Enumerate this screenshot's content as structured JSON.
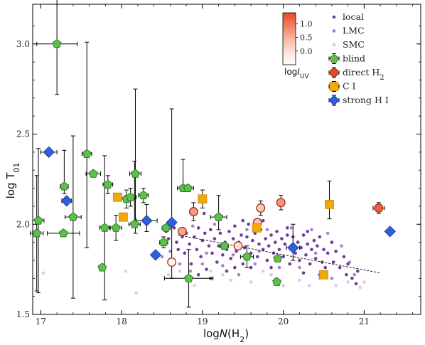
{
  "chart_data": {
    "type": "scatter",
    "xlabel_main": "logN",
    "xlabel_sub": "(H",
    "xlabel_subscript": "2",
    "xlabel_close": ")",
    "ylabel_main": "log T",
    "ylabel_subscript": "01",
    "xlim": [
      16.9,
      21.7
    ],
    "ylim": [
      1.5,
      3.22
    ],
    "xticks": [
      17,
      18,
      19,
      20,
      21
    ],
    "xtick_labels": [
      "17",
      "18",
      "19",
      "20",
      "21"
    ],
    "yticks": [
      1.5,
      2.0,
      2.5,
      3.0
    ],
    "ytick_labels": [
      "1.5",
      "2.0",
      "2.5",
      "3.0"
    ],
    "fit_line": {
      "x": [
        18.7,
        21.2
      ],
      "y": [
        1.94,
        1.73
      ]
    },
    "colorbar": {
      "label_main": "log",
      "label_italic": "I",
      "label_subscript": "UV",
      "ticks": [
        0.0,
        0.5,
        1.0
      ],
      "tick_labels": [
        "0.0",
        "0.5",
        "1.0"
      ],
      "range": [
        -0.5,
        1.4
      ],
      "colors": [
        "#ffffff",
        "#fbe3da",
        "#f7c1ab",
        "#f4a07f",
        "#ef6f45",
        "#e8491e"
      ]
    },
    "legend": [
      {
        "label": "local",
        "marker": "dot",
        "color": "#6e3d9a"
      },
      {
        "label": "LMC",
        "marker": "dot",
        "color": "#9f7fbe"
      },
      {
        "label": "SMC",
        "marker": "dot",
        "color": "#d9c6e0"
      },
      {
        "label": "blind",
        "marker": "pentagon",
        "color": "#5cc04a"
      },
      {
        "label": "direct H",
        "label_subscript": "2",
        "marker": "circle",
        "color": "#e8491e"
      },
      {
        "label": "C I",
        "marker": "square",
        "color": "#f1a90a"
      },
      {
        "label": "strong H I",
        "marker": "diamond",
        "color": "#2f5fe0"
      }
    ],
    "series": [
      {
        "name": "blind",
        "color": "#5cc04a",
        "points": [
          {
            "x": 17.2,
            "y": 3.0,
            "xerr": 0.25,
            "yerr": [
              0.28,
              1.3
            ]
          },
          {
            "x": 16.97,
            "y": 2.02,
            "xerr": 0.07,
            "yerr": [
              0.4,
              0.4
            ]
          },
          {
            "x": 16.95,
            "y": 1.95,
            "xerr": 0.08,
            "yerr": [
              0.32,
              0.32
            ]
          },
          {
            "x": 17.29,
            "y": 2.21,
            "xerr": 0.05,
            "yerr": [
              0.04,
              0.2
            ]
          },
          {
            "x": 17.28,
            "y": 1.95,
            "xerr": 0.2,
            "yerr": [
              0.0,
              0.0
            ]
          },
          {
            "x": 17.4,
            "y": 2.04,
            "xerr": 0.1,
            "yerr": [
              0.45,
              0.45
            ]
          },
          {
            "x": 17.57,
            "y": 2.39,
            "xerr": 0.06,
            "yerr": [
              0.52,
              0.62
            ]
          },
          {
            "x": 17.65,
            "y": 2.28,
            "xerr": 0.09,
            "yerr": [
              0.0,
              0.0
            ]
          },
          {
            "x": 17.76,
            "y": 1.76,
            "xerr": 0.03,
            "yerr": [
              0.0,
              0.0
            ]
          },
          {
            "x": 17.79,
            "y": 1.98,
            "xerr": 0.06,
            "yerr": [
              0.4,
              0.4
            ]
          },
          {
            "x": 17.83,
            "y": 2.22,
            "xerr": 0.06,
            "yerr": [
              0.05,
              0.05
            ]
          },
          {
            "x": 17.93,
            "y": 1.98,
            "xerr": 0.07,
            "yerr": [
              0.07,
              0.07
            ]
          },
          {
            "x": 18.06,
            "y": 2.14,
            "xerr": 0.06,
            "yerr": [
              0.05,
              0.05
            ]
          },
          {
            "x": 18.11,
            "y": 2.15,
            "xerr": 0.07,
            "yerr": [
              0.05,
              0.05
            ]
          },
          {
            "x": 18.17,
            "y": 2.28,
            "xerr": 0.07,
            "yerr": [
              0.33,
              0.47
            ]
          },
          {
            "x": 18.16,
            "y": 2.0,
            "xerr": 0.07,
            "yerr": [
              0.0,
              0.35
            ]
          },
          {
            "x": 18.27,
            "y": 2.16,
            "xerr": 0.06,
            "yerr": [
              0.04,
              0.04
            ]
          },
          {
            "x": 18.52,
            "y": 1.9,
            "xerr": 0.05,
            "yerr": [
              0.03,
              0.03
            ]
          },
          {
            "x": 18.55,
            "y": 1.98,
            "xerr": 0.05,
            "yerr": [
              0.0,
              0.0
            ]
          },
          {
            "x": 18.76,
            "y": 2.2,
            "xerr": 0.07,
            "yerr": [
              0.0,
              0.16
            ]
          },
          {
            "x": 18.82,
            "y": 2.2,
            "xerr": 0.07,
            "yerr": [
              0.0,
              0.0
            ]
          },
          {
            "x": 18.83,
            "y": 1.7,
            "xerr": 0.3,
            "yerr": [
              0.16,
              0.16
            ]
          },
          {
            "x": 19.2,
            "y": 2.04,
            "xerr": 0.1,
            "yerr": [
              0.07,
              0.12
            ]
          },
          {
            "x": 19.27,
            "y": 1.88,
            "xerr": 0.05,
            "yerr": [
              0.0,
              0.0
            ]
          },
          {
            "x": 19.55,
            "y": 1.82,
            "xerr": 0.08,
            "yerr": [
              0.06,
              0.06
            ]
          },
          {
            "x": 19.93,
            "y": 1.81,
            "xerr": 0.0,
            "yerr": [
              0.0,
              0.0
            ]
          },
          {
            "x": 19.92,
            "y": 1.68,
            "xerr": 0.0,
            "yerr": [
              0.0,
              0.0
            ]
          }
        ]
      },
      {
        "name": "direct H2",
        "color": "#e8491e",
        "points": [
          {
            "x": 18.75,
            "y": 1.96,
            "yerr": [
              0.0,
              0.0
            ],
            "iuv": 0.45
          },
          {
            "x": 18.62,
            "y": 1.79,
            "yerr": [
              0.0,
              0.0
            ],
            "iuv": -0.4
          },
          {
            "x": 18.89,
            "y": 2.07,
            "yerr": [
              0.05,
              0.05
            ],
            "iuv": 0.55
          },
          {
            "x": 19.44,
            "y": 1.88,
            "yerr": [
              0.0,
              0.0
            ],
            "iuv": -0.15
          },
          {
            "x": 19.68,
            "y": 2.01,
            "yerr": [
              0.0,
              0.0
            ],
            "iuv": 0.15
          },
          {
            "x": 19.72,
            "y": 2.09,
            "yerr": [
              0.04,
              0.04
            ],
            "iuv": 0.1
          },
          {
            "x": 19.97,
            "y": 2.12,
            "yerr": [
              0.04,
              0.04
            ],
            "iuv": 0.6
          },
          {
            "x": 21.18,
            "y": 2.09,
            "yerr": [
              0.03,
              0.03
            ],
            "xerr": 0.07,
            "iuv": 1.15
          }
        ]
      },
      {
        "name": "C I",
        "color": "#f1a90a",
        "points": [
          {
            "x": 17.95,
            "y": 2.15,
            "yerr": [
              0.0,
              0.0
            ]
          },
          {
            "x": 18.02,
            "y": 2.04,
            "yerr": [
              0.0,
              0.0
            ]
          },
          {
            "x": 19.0,
            "y": 2.14,
            "yerr": [
              0.05,
              0.05
            ]
          },
          {
            "x": 19.67,
            "y": 1.98,
            "yerr": [
              0.0,
              0.0
            ]
          },
          {
            "x": 20.5,
            "y": 1.72,
            "yerr": [
              0.0,
              0.0
            ]
          },
          {
            "x": 20.57,
            "y": 2.11,
            "yerr": [
              0.08,
              0.13
            ]
          }
        ]
      },
      {
        "name": "strong H I",
        "color": "#2f5fe0",
        "points": [
          {
            "x": 17.1,
            "y": 2.4,
            "xerr": 0.1,
            "yerr": [
              0.0,
              0.0
            ]
          },
          {
            "x": 17.32,
            "y": 2.13,
            "xerr": 0.06,
            "yerr": [
              0.0,
              0.0
            ]
          },
          {
            "x": 18.31,
            "y": 2.02,
            "xerr": 0.13,
            "yerr": [
              0.06,
              0.09
            ]
          },
          {
            "x": 18.42,
            "y": 1.83,
            "xerr": 0.0,
            "yerr": [
              0.0,
              0.0
            ]
          },
          {
            "x": 18.62,
            "y": 2.01,
            "xerr": 0.0,
            "yerr": [
              0.31,
              0.63
            ]
          },
          {
            "x": 20.12,
            "y": 1.87,
            "xerr": 0.08,
            "yerr": [
              0.07,
              0.13
            ]
          },
          {
            "x": 21.32,
            "y": 1.96,
            "xerr": 0.0,
            "yerr": [
              0.0,
              0.0
            ]
          }
        ]
      }
    ],
    "dots": {
      "local": [
        [
          18.55,
          1.96
        ],
        [
          18.58,
          1.92
        ],
        [
          18.65,
          1.98
        ],
        [
          18.68,
          1.9
        ],
        [
          18.7,
          1.86
        ],
        [
          18.75,
          1.93
        ],
        [
          18.78,
          1.84
        ],
        [
          18.8,
          1.95
        ],
        [
          18.84,
          1.89
        ],
        [
          18.86,
          1.78
        ],
        [
          18.9,
          1.93
        ],
        [
          18.93,
          1.86
        ],
        [
          18.95,
          1.98
        ],
        [
          18.98,
          1.82
        ],
        [
          19.0,
          1.91
        ],
        [
          19.03,
          1.95
        ],
        [
          19.05,
          1.75
        ],
        [
          19.08,
          1.88
        ],
        [
          19.1,
          1.97
        ],
        [
          19.12,
          1.84
        ],
        [
          19.15,
          1.92
        ],
        [
          19.18,
          1.79
        ],
        [
          19.2,
          1.88
        ],
        [
          19.22,
          1.95
        ],
        [
          19.25,
          1.83
        ],
        [
          19.28,
          1.9
        ],
        [
          19.3,
          1.86
        ],
        [
          19.33,
          1.96
        ],
        [
          19.35,
          1.81
        ],
        [
          19.38,
          1.92
        ],
        [
          19.4,
          1.99
        ],
        [
          19.42,
          1.85
        ],
        [
          19.45,
          1.9
        ],
        [
          19.48,
          1.94
        ],
        [
          19.5,
          1.78
        ],
        [
          19.52,
          1.87
        ],
        [
          19.55,
          1.93
        ],
        [
          19.57,
          2.0
        ],
        [
          19.6,
          1.84
        ],
        [
          19.62,
          1.91
        ],
        [
          19.65,
          1.95
        ],
        [
          19.68,
          1.82
        ],
        [
          19.7,
          1.89
        ],
        [
          19.72,
          1.97
        ],
        [
          19.75,
          1.86
        ],
        [
          19.78,
          1.92
        ],
        [
          19.8,
          1.8
        ],
        [
          19.82,
          1.88
        ],
        [
          19.85,
          1.94
        ],
        [
          19.88,
          1.84
        ],
        [
          19.9,
          1.9
        ],
        [
          19.92,
          1.96
        ],
        [
          19.95,
          1.86
        ],
        [
          19.98,
          1.92
        ],
        [
          20.0,
          1.82
        ],
        [
          20.02,
          1.89
        ],
        [
          20.05,
          1.94
        ],
        [
          20.08,
          1.78
        ],
        [
          20.1,
          1.87
        ],
        [
          20.12,
          1.93
        ],
        [
          20.15,
          1.84
        ],
        [
          20.18,
          1.9
        ],
        [
          20.2,
          1.8
        ],
        [
          20.22,
          1.87
        ],
        [
          20.25,
          1.94
        ],
        [
          20.28,
          1.83
        ],
        [
          20.3,
          1.89
        ],
        [
          20.33,
          1.78
        ],
        [
          20.35,
          1.86
        ],
        [
          20.38,
          1.91
        ],
        [
          20.4,
          1.81
        ],
        [
          20.42,
          1.88
        ],
        [
          20.45,
          1.93
        ],
        [
          20.48,
          1.79
        ],
        [
          20.5,
          1.86
        ],
        [
          20.52,
          1.76
        ],
        [
          20.55,
          1.84
        ],
        [
          20.6,
          1.9
        ],
        [
          20.62,
          1.79
        ],
        [
          20.65,
          1.85
        ],
        [
          20.7,
          1.76
        ],
        [
          20.75,
          1.82
        ],
        [
          20.78,
          1.72
        ],
        [
          20.8,
          1.78
        ],
        [
          20.85,
          1.7
        ],
        [
          20.9,
          1.67
        ],
        [
          20.92,
          1.74
        ],
        [
          19.02,
          2.06
        ],
        [
          19.1,
          1.7
        ],
        [
          19.3,
          1.74
        ],
        [
          19.6,
          1.76
        ],
        [
          19.85,
          1.76
        ],
        [
          20.25,
          1.73
        ],
        [
          20.45,
          1.72
        ],
        [
          19.5,
          2.02
        ],
        [
          20.3,
          1.96
        ],
        [
          20.05,
          1.98
        ],
        [
          18.95,
          1.72
        ],
        [
          19.75,
          2.02
        ],
        [
          19.4,
          1.76
        ]
      ],
      "LMC": [
        [
          18.6,
          1.85
        ],
        [
          18.72,
          1.78
        ],
        [
          18.88,
          1.99
        ],
        [
          19.0,
          1.78
        ],
        [
          19.15,
          2.0
        ],
        [
          19.25,
          1.77
        ],
        [
          19.38,
          1.83
        ],
        [
          19.55,
          1.97
        ],
        [
          19.65,
          1.78
        ],
        [
          19.8,
          1.97
        ],
        [
          19.95,
          1.76
        ],
        [
          20.1,
          1.98
        ],
        [
          20.2,
          1.76
        ],
        [
          20.35,
          1.97
        ],
        [
          20.55,
          1.95
        ],
        [
          20.6,
          1.7
        ],
        [
          20.72,
          1.88
        ],
        [
          20.88,
          1.72
        ],
        [
          18.85,
          1.74
        ],
        [
          19.45,
          1.72
        ],
        [
          18.5,
          1.82
        ],
        [
          19.05,
          1.84
        ],
        [
          19.7,
          1.85
        ],
        [
          20.4,
          1.84
        ],
        [
          20.82,
          1.79
        ]
      ],
      "SMC": [
        [
          17.03,
          1.73
        ],
        [
          18.05,
          1.74
        ],
        [
          18.18,
          1.62
        ],
        [
          18.45,
          1.84
        ],
        [
          18.72,
          1.74
        ],
        [
          18.9,
          1.66
        ],
        [
          19.1,
          1.74
        ],
        [
          19.25,
          1.72
        ],
        [
          19.35,
          1.69
        ],
        [
          19.6,
          1.68
        ],
        [
          19.75,
          1.74
        ],
        [
          19.85,
          1.72
        ],
        [
          20.0,
          1.66
        ],
        [
          20.2,
          1.69
        ],
        [
          20.32,
          1.66
        ],
        [
          20.45,
          1.7
        ],
        [
          20.65,
          1.66
        ],
        [
          20.8,
          1.68
        ],
        [
          21.0,
          1.68
        ],
        [
          20.95,
          1.65
        ],
        [
          18.58,
          1.72
        ],
        [
          19.9,
          1.7
        ]
      ]
    }
  }
}
